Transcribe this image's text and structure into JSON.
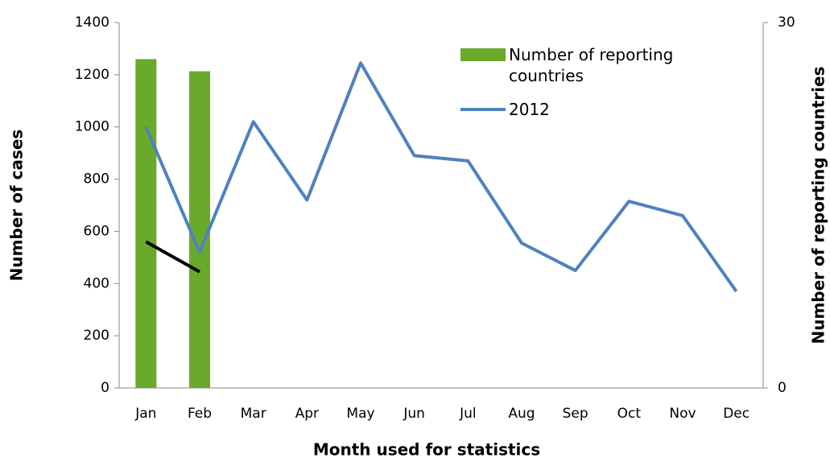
{
  "chart_data": {
    "type": "line",
    "xlabel": "Month used for statistics",
    "ylabel": "Number of cases",
    "y2label": "Number of reporting countries",
    "categories": [
      "Jan",
      "Feb",
      "Mar",
      "Apr",
      "May",
      "Jun",
      "Jul",
      "Aug",
      "Sep",
      "Oct",
      "Nov",
      "Dec"
    ],
    "series": [
      {
        "name": "Number of reporting countries",
        "type": "bar",
        "axis": "y2",
        "color": "#6aaa2a",
        "values": [
          27,
          26,
          null,
          null,
          null,
          null,
          null,
          null,
          null,
          null,
          null,
          null
        ]
      },
      {
        "name": "2012",
        "type": "line",
        "color": "#4f81bd",
        "values": [
          1000,
          520,
          1020,
          720,
          1245,
          890,
          870,
          555,
          450,
          715,
          660,
          370
        ]
      },
      {
        "type": "line",
        "color": "#000000",
        "values": [
          560,
          445,
          null,
          null,
          null,
          null,
          null,
          null,
          null,
          null,
          null,
          null
        ]
      }
    ],
    "ylim": [
      0,
      1400
    ],
    "yticks": [
      0,
      200,
      400,
      600,
      800,
      1000,
      1200,
      1400
    ],
    "y2lim": [
      0,
      30
    ],
    "y2ticks": [
      0,
      30
    ]
  }
}
